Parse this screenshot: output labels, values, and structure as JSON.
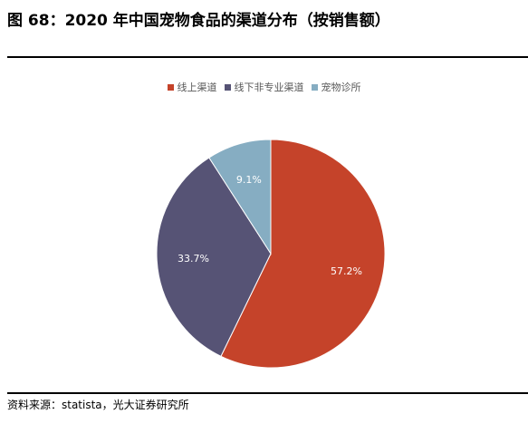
{
  "title": "图 68：2020 年中国宠物食品的渠道分布（按销售额）",
  "source": "资料来源：statista，光大证券研究所",
  "chart_data": {
    "type": "pie",
    "title": "",
    "slices": [
      {
        "label": "线上渠道",
        "value": 57.2,
        "display": "57.2%",
        "color": "#c5432a"
      },
      {
        "label": "线下非专业渠道",
        "value": 33.7,
        "display": "33.7%",
        "color": "#565375"
      },
      {
        "label": "宠物诊所",
        "value": 9.1,
        "display": "9.1%",
        "color": "#86adc2"
      }
    ],
    "start_angle": "12 o'clock",
    "direction": "clockwise",
    "legend_position": "top"
  }
}
